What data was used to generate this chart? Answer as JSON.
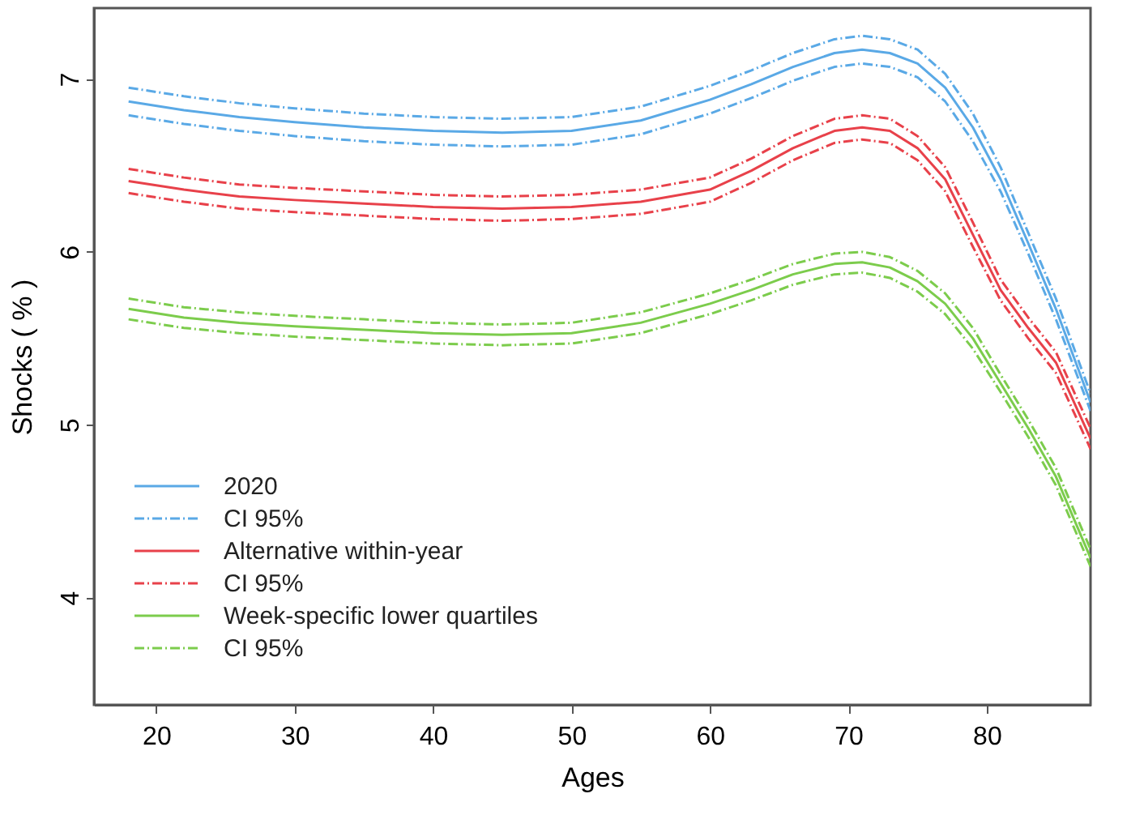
{
  "chart_data": {
    "type": "line",
    "xlabel": "Ages",
    "ylabel": "Shocks ( % )",
    "x": [
      18,
      22,
      26,
      30,
      35,
      40,
      45,
      50,
      55,
      60,
      63,
      66,
      69,
      71,
      73,
      75,
      77,
      79,
      81,
      83,
      85,
      87.5
    ],
    "xlim": [
      15.5,
      87.5
    ],
    "ylim": [
      3.38,
      7.41
    ],
    "xticks": [
      20,
      30,
      40,
      50,
      60,
      70,
      80
    ],
    "yticks": [
      4,
      5,
      6,
      7
    ],
    "grid": false,
    "legend": "bottom left",
    "marker": "none",
    "series": [
      {
        "name": "2020",
        "color": "#5aa9e6",
        "line_style": "solid",
        "values": [
          6.87,
          6.82,
          6.78,
          6.75,
          6.72,
          6.7,
          6.69,
          6.7,
          6.76,
          6.88,
          6.97,
          7.07,
          7.15,
          7.17,
          7.15,
          7.09,
          6.95,
          6.72,
          6.42,
          6.05,
          5.67,
          5.13
        ]
      },
      {
        "name": "CI 95%",
        "color": "#5aa9e6",
        "line_style": "dashed",
        "values": [
          6.95,
          6.9,
          6.86,
          6.83,
          6.8,
          6.78,
          6.77,
          6.78,
          6.84,
          6.96,
          7.05,
          7.15,
          7.23,
          7.25,
          7.23,
          7.17,
          7.03,
          6.8,
          6.49,
          6.11,
          5.73,
          5.18
        ]
      },
      {
        "color": "#5aa9e6",
        "line_style": "dashed",
        "values": [
          6.79,
          6.74,
          6.7,
          6.67,
          6.64,
          6.62,
          6.61,
          6.62,
          6.68,
          6.8,
          6.89,
          6.99,
          7.07,
          7.09,
          7.07,
          7.01,
          6.87,
          6.64,
          6.35,
          5.99,
          5.61,
          5.08
        ]
      },
      {
        "name": "Alternative within-year",
        "color": "#e8414a",
        "line_style": "solid",
        "values": [
          6.41,
          6.36,
          6.32,
          6.3,
          6.28,
          6.26,
          6.25,
          6.26,
          6.29,
          6.36,
          6.47,
          6.6,
          6.7,
          6.72,
          6.7,
          6.6,
          6.42,
          6.1,
          5.78,
          5.56,
          5.36,
          4.92
        ]
      },
      {
        "name": "CI 95%",
        "color": "#e8414a",
        "line_style": "dashed",
        "values": [
          6.48,
          6.43,
          6.39,
          6.37,
          6.35,
          6.33,
          6.32,
          6.33,
          6.36,
          6.43,
          6.54,
          6.67,
          6.77,
          6.79,
          6.77,
          6.67,
          6.49,
          6.17,
          5.84,
          5.62,
          5.42,
          4.98
        ]
      },
      {
        "color": "#e8414a",
        "line_style": "dashed",
        "values": [
          6.34,
          6.29,
          6.25,
          6.23,
          6.21,
          6.19,
          6.18,
          6.19,
          6.22,
          6.29,
          6.4,
          6.53,
          6.63,
          6.65,
          6.63,
          6.53,
          6.35,
          6.03,
          5.72,
          5.5,
          5.3,
          4.86
        ]
      },
      {
        "name": "Week-specific lower quartiles",
        "color": "#7ccc4c",
        "line_style": "solid",
        "values": [
          5.67,
          5.62,
          5.59,
          5.57,
          5.55,
          5.53,
          5.52,
          5.53,
          5.59,
          5.7,
          5.78,
          5.87,
          5.93,
          5.94,
          5.91,
          5.83,
          5.7,
          5.5,
          5.24,
          4.98,
          4.7,
          4.23
        ]
      },
      {
        "name": "CI 95%",
        "color": "#7ccc4c",
        "line_style": "dashed",
        "values": [
          5.73,
          5.68,
          5.65,
          5.63,
          5.61,
          5.59,
          5.58,
          5.59,
          5.65,
          5.76,
          5.84,
          5.93,
          5.99,
          6.0,
          5.97,
          5.89,
          5.76,
          5.56,
          5.29,
          5.03,
          4.75,
          4.28
        ]
      },
      {
        "color": "#7ccc4c",
        "line_style": "dashed",
        "values": [
          5.61,
          5.56,
          5.53,
          5.51,
          5.49,
          5.47,
          5.46,
          5.47,
          5.53,
          5.64,
          5.72,
          5.81,
          5.87,
          5.88,
          5.85,
          5.77,
          5.64,
          5.44,
          5.19,
          4.93,
          4.65,
          4.18
        ]
      }
    ]
  }
}
